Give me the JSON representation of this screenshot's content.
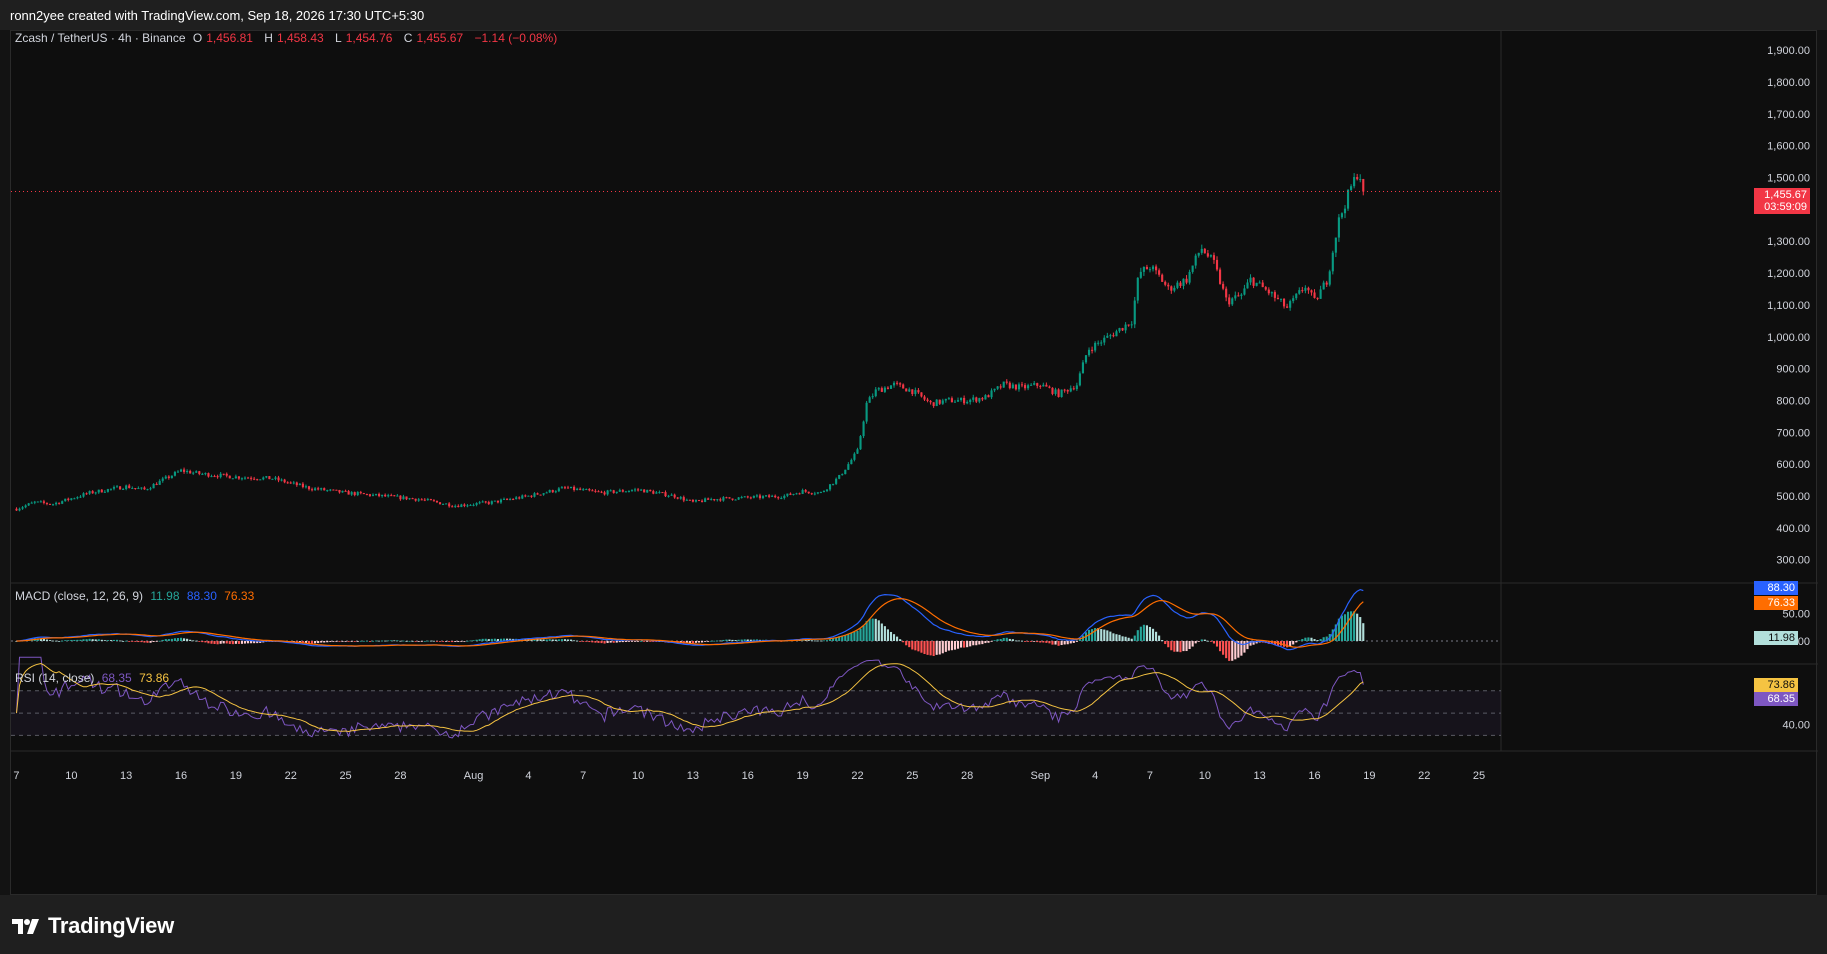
{
  "header": {
    "caption": "ronn2yee created with TradingView.com, Sep 18, 2026 17:30 UTC+5:30"
  },
  "legend": {
    "symbol": "Zcash / TetherUS · 4h · Binance",
    "o_label": "O",
    "o": "1,456.81",
    "h_label": "H",
    "h": "1,458.43",
    "l_label": "L",
    "l": "1,454.76",
    "c_label": "C",
    "c": "1,455.67",
    "change": "−1.14 (−0.08%)"
  },
  "price_tag": {
    "price": "1,455.67",
    "countdown": "03:59:09"
  },
  "macd": {
    "label": "MACD (close, 12, 26, 9)",
    "hist": "11.98",
    "macd": "88.30",
    "signal": "76.33",
    "axis_ticks": [
      {
        "v": 0,
        "t": "0.00"
      },
      {
        "v": 50,
        "t": "50.00"
      }
    ]
  },
  "rsi": {
    "label": "RSI (14, close)",
    "rsi": "68.35",
    "ma": "73.86",
    "axis_ticks": [
      {
        "v": 40,
        "t": "40.00"
      }
    ]
  },
  "colors": {
    "up": "#089981",
    "down": "#f23645",
    "macd": "#2962ff",
    "signal": "#ff6d00",
    "rsi": "#7e57c2",
    "rsi_ma": "#f5c342",
    "bg": "#0e0e0e"
  },
  "footer": {
    "brand": "TradingView",
    "logo_icon": "tradingview-logo-icon"
  },
  "chart_data": {
    "type": "candlestick",
    "interval": "4h",
    "y_range": [
      230,
      1960
    ],
    "y_ticks": [
      {
        "v": 1900,
        "t": "1,900.00"
      },
      {
        "v": 1800,
        "t": "1,800.00"
      },
      {
        "v": 1700,
        "t": "1,700.00"
      },
      {
        "v": 1600,
        "t": "1,600.00"
      },
      {
        "v": 1500,
        "t": "1,500.00"
      },
      {
        "v": 1400,
        "t": ""
      },
      {
        "v": 1300,
        "t": "1,300.00"
      },
      {
        "v": 1200,
        "t": "1,200.00"
      },
      {
        "v": 1100,
        "t": "1,100.00"
      },
      {
        "v": 1000,
        "t": "1,000.00"
      },
      {
        "v": 900,
        "t": "900.00"
      },
      {
        "v": 800,
        "t": "800.00"
      },
      {
        "v": 700,
        "t": "700.00"
      },
      {
        "v": 600,
        "t": "600.00"
      },
      {
        "v": 500,
        "t": "500.00"
      },
      {
        "v": 400,
        "t": "400.00"
      },
      {
        "v": 300,
        "t": "300.00"
      }
    ],
    "x_ticks": [
      {
        "day": 0,
        "t": "7"
      },
      {
        "day": 3,
        "t": "10"
      },
      {
        "day": 6,
        "t": "13"
      },
      {
        "day": 9,
        "t": "16"
      },
      {
        "day": 12,
        "t": "19"
      },
      {
        "day": 15,
        "t": "22"
      },
      {
        "day": 18,
        "t": "25"
      },
      {
        "day": 21,
        "t": "28"
      },
      {
        "day": 25,
        "t": "Aug"
      },
      {
        "day": 28,
        "t": "4"
      },
      {
        "day": 31,
        "t": "7"
      },
      {
        "day": 34,
        "t": "10"
      },
      {
        "day": 37,
        "t": "13"
      },
      {
        "day": 40,
        "t": "16"
      },
      {
        "day": 43,
        "t": "19"
      },
      {
        "day": 46,
        "t": "22"
      },
      {
        "day": 49,
        "t": "25"
      },
      {
        "day": 52,
        "t": "28"
      },
      {
        "day": 56,
        "t": "Sep"
      },
      {
        "day": 59,
        "t": "4"
      },
      {
        "day": 62,
        "t": "7"
      },
      {
        "day": 65,
        "t": "10"
      },
      {
        "day": 68,
        "t": "13"
      },
      {
        "day": 71,
        "t": "16"
      },
      {
        "day": 74,
        "t": "19"
      },
      {
        "day": 77,
        "t": "22"
      },
      {
        "day": 80,
        "t": "25"
      }
    ],
    "x_range_days": [
      -0.3,
      81.2
    ],
    "last_day": 73.8,
    "close_anchors": [
      [
        0,
        460
      ],
      [
        1,
        480
      ],
      [
        2,
        475
      ],
      [
        4,
        510
      ],
      [
        6,
        530
      ],
      [
        7,
        520
      ],
      [
        8,
        550
      ],
      [
        9,
        580
      ],
      [
        10,
        570
      ],
      [
        12,
        560
      ],
      [
        14,
        555
      ],
      [
        16,
        525
      ],
      [
        18,
        510
      ],
      [
        20,
        500
      ],
      [
        22,
        490
      ],
      [
        24,
        470
      ],
      [
        26,
        480
      ],
      [
        28,
        500
      ],
      [
        30,
        525
      ],
      [
        32,
        510
      ],
      [
        34,
        520
      ],
      [
        36,
        500
      ],
      [
        37,
        480
      ],
      [
        38,
        490
      ],
      [
        40,
        495
      ],
      [
        42,
        500
      ],
      [
        43,
        515
      ],
      [
        44,
        510
      ],
      [
        45,
        560
      ],
      [
        46,
        640
      ],
      [
        46.5,
        790
      ],
      [
        47,
        830
      ],
      [
        48,
        850
      ],
      [
        49,
        830
      ],
      [
        50,
        790
      ],
      [
        51,
        800
      ],
      [
        52,
        800
      ],
      [
        53,
        810
      ],
      [
        54,
        850
      ],
      [
        55,
        840
      ],
      [
        56,
        850
      ],
      [
        57,
        820
      ],
      [
        58,
        850
      ],
      [
        58.6,
        960
      ],
      [
        60,
        1010
      ],
      [
        61,
        1050
      ],
      [
        61.4,
        1200
      ],
      [
        62,
        1220
      ],
      [
        62.5,
        1190
      ],
      [
        63,
        1150
      ],
      [
        64,
        1180
      ],
      [
        64.8,
        1280
      ],
      [
        65.5,
        1230
      ],
      [
        66.2,
        1110
      ],
      [
        67,
        1130
      ],
      [
        67.5,
        1180
      ],
      [
        68.5,
        1140
      ],
      [
        69.5,
        1090
      ],
      [
        70.5,
        1160
      ],
      [
        71,
        1110
      ],
      [
        71.7,
        1180
      ],
      [
        72.3,
        1360
      ],
      [
        73,
        1470
      ],
      [
        73.4,
        1520
      ],
      [
        73.8,
        1456
      ]
    ],
    "seed": 7
  }
}
